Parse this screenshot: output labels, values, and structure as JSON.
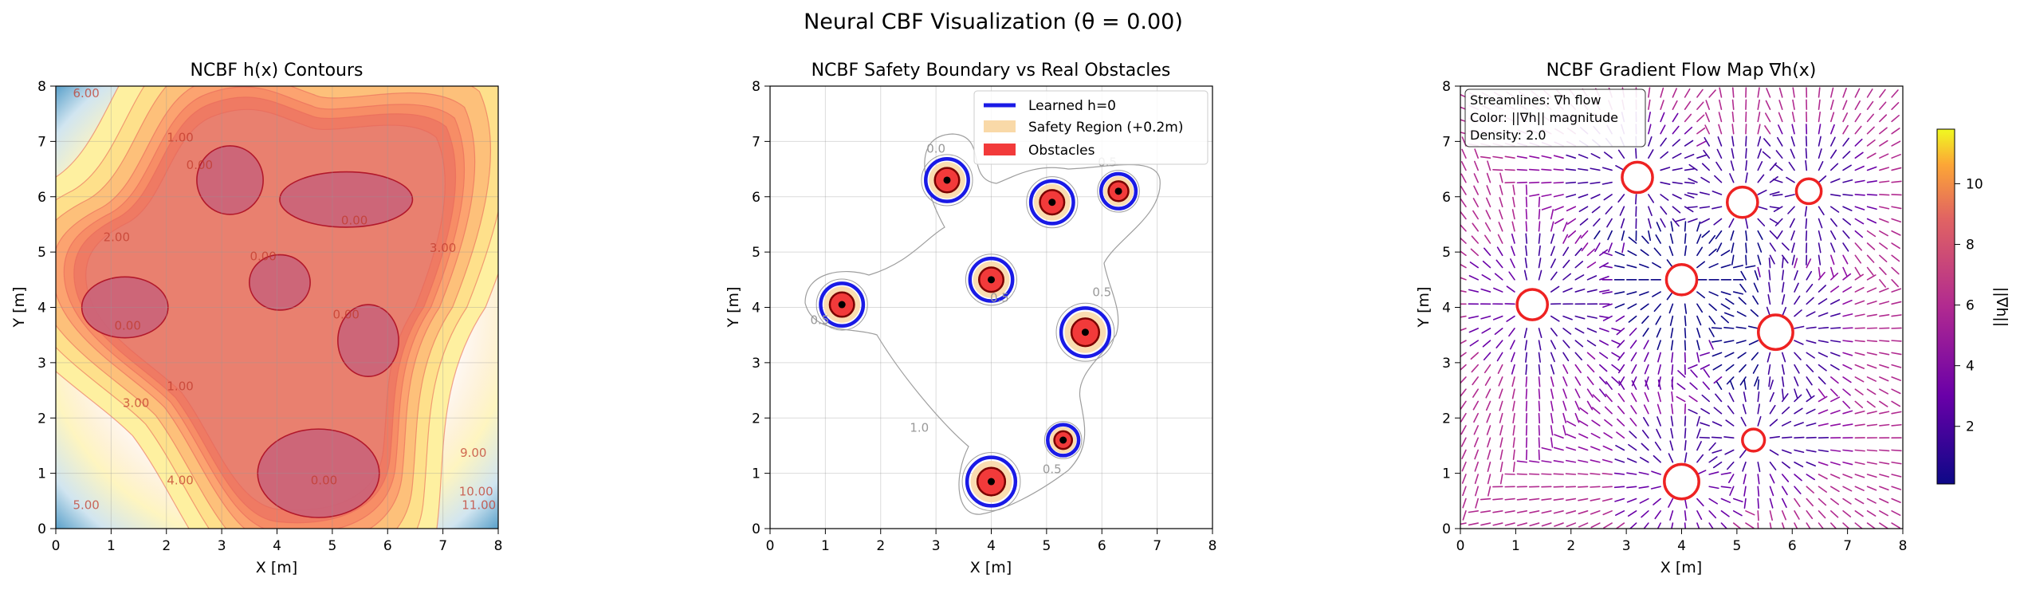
{
  "figure": {
    "suptitle": "Neural CBF Visualization (θ = 0.00)"
  },
  "chart_data": [
    {
      "type": "contour",
      "title": "NCBF h(x) Contours",
      "xlabel": "X [m]",
      "ylabel": "Y [m]",
      "xlim": [
        0,
        8
      ],
      "ylim": [
        0,
        8
      ],
      "xticks": [
        "0",
        "1",
        "2",
        "3",
        "4",
        "5",
        "6",
        "7",
        "8"
      ],
      "yticks": [
        "0",
        "1",
        "2",
        "3",
        "4",
        "5",
        "6",
        "7",
        "8"
      ],
      "grid": true,
      "colormap": "RdYlBu",
      "zero_regions": [
        {
          "cx": 1.25,
          "cy": 4.0,
          "rx": 0.78,
          "ry": 0.55
        },
        {
          "cx": 3.15,
          "cy": 6.3,
          "rx": 0.6,
          "ry": 0.62
        },
        {
          "cx": 5.25,
          "cy": 5.95,
          "rx": 1.2,
          "ry": 0.5
        },
        {
          "cx": 4.05,
          "cy": 4.45,
          "rx": 0.55,
          "ry": 0.5
        },
        {
          "cx": 5.65,
          "cy": 3.4,
          "rx": 0.55,
          "ry": 0.65
        },
        {
          "cx": 4.75,
          "cy": 1.0,
          "rx": 1.1,
          "ry": 0.8
        }
      ],
      "contour_labels": [
        {
          "text": "0.00",
          "x": 1.3,
          "y": 3.6
        },
        {
          "text": "0.00",
          "x": 2.6,
          "y": 6.5
        },
        {
          "text": "0.00",
          "x": 5.4,
          "y": 5.5
        },
        {
          "text": "0.00",
          "x": 3.75,
          "y": 4.85
        },
        {
          "text": "0.00",
          "x": 5.25,
          "y": 3.8
        },
        {
          "text": "0.00",
          "x": 4.85,
          "y": 0.8
        },
        {
          "text": "1.00",
          "x": 2.25,
          "y": 7.0
        },
        {
          "text": "1.00",
          "x": 2.25,
          "y": 2.5
        },
        {
          "text": "2.00",
          "x": 1.1,
          "y": 5.2
        },
        {
          "text": "3.00",
          "x": 1.45,
          "y": 2.2
        },
        {
          "text": "3.00",
          "x": 7.0,
          "y": 5.0
        },
        {
          "text": "4.00",
          "x": 2.25,
          "y": 0.8
        },
        {
          "text": "5.00",
          "x": 0.55,
          "y": 0.35
        },
        {
          "text": "6.00",
          "x": 0.55,
          "y": 7.8
        },
        {
          "text": "9.00",
          "x": 7.55,
          "y": 1.3
        },
        {
          "text": "10.00",
          "x": 7.6,
          "y": 0.6
        },
        {
          "text": "11.00",
          "x": 7.65,
          "y": 0.35
        }
      ]
    },
    {
      "type": "overlay",
      "title": "NCBF Safety Boundary vs Real Obstacles",
      "xlabel": "X [m]",
      "ylabel": "Y [m]",
      "xlim": [
        0,
        8
      ],
      "ylim": [
        0,
        8
      ],
      "xticks": [
        "0",
        "1",
        "2",
        "3",
        "4",
        "5",
        "6",
        "7",
        "8"
      ],
      "yticks": [
        "0",
        "1",
        "2",
        "3",
        "4",
        "5",
        "6",
        "7",
        "8"
      ],
      "grid": true,
      "legend_position": "upper-right",
      "legend": [
        {
          "label": "Learned h=0",
          "type": "line",
          "color": "#1a1ae6"
        },
        {
          "label": "Safety Region (+0.2m)",
          "type": "patch",
          "color": "#f9d9a8"
        },
        {
          "label": "Obstacles",
          "type": "patch",
          "color": "#f23a3a"
        }
      ],
      "obstacles": [
        {
          "x": 1.3,
          "y": 4.05,
          "r": 0.22
        },
        {
          "x": 3.2,
          "y": 6.3,
          "r": 0.22
        },
        {
          "x": 5.1,
          "y": 5.9,
          "r": 0.22
        },
        {
          "x": 6.3,
          "y": 6.1,
          "r": 0.18
        },
        {
          "x": 4.0,
          "y": 4.5,
          "r": 0.22
        },
        {
          "x": 5.7,
          "y": 3.55,
          "r": 0.25
        },
        {
          "x": 5.3,
          "y": 1.6,
          "r": 0.16
        },
        {
          "x": 4.0,
          "y": 0.85,
          "r": 0.25
        }
      ],
      "contour_labels": [
        {
          "text": "1.0",
          "x": 2.7,
          "y": 1.75,
          "color": "#999999"
        },
        {
          "text": "0.5",
          "x": 6.1,
          "y": 6.55,
          "color": "#999999"
        },
        {
          "text": "0.5",
          "x": 6.0,
          "y": 4.2,
          "color": "#999999"
        },
        {
          "text": "0.5",
          "x": 5.1,
          "y": 1.0,
          "color": "#999999"
        },
        {
          "text": "0.5",
          "x": 0.9,
          "y": 3.7,
          "color": "#999999"
        },
        {
          "text": "0.5",
          "x": 4.15,
          "y": 4.1,
          "color": "#999999"
        },
        {
          "text": "0.0",
          "x": 3.0,
          "y": 6.8,
          "color": "#999999"
        }
      ]
    },
    {
      "type": "streamplot",
      "title": "NCBF Gradient Flow Map ∇h(x)",
      "xlabel": "X [m]",
      "ylabel": "Y [m]",
      "xlim": [
        0,
        8
      ],
      "ylim": [
        0,
        8
      ],
      "xticks": [
        "0",
        "1",
        "2",
        "3",
        "4",
        "5",
        "6",
        "7",
        "8"
      ],
      "yticks": [
        "0",
        "1",
        "2",
        "3",
        "4",
        "5",
        "6",
        "7",
        "8"
      ],
      "annotation": [
        "Streamlines: ∇h flow",
        "Color: ||∇h|| magnitude",
        "Density: 2.0"
      ],
      "colorbar": {
        "label": "||∇h||",
        "ticks": [
          "2",
          "4",
          "6",
          "8",
          "10"
        ],
        "min": 0.1,
        "max": 11.8
      },
      "obstacles": [
        {
          "x": 1.3,
          "y": 4.05,
          "r": 0.22
        },
        {
          "x": 3.2,
          "y": 6.35,
          "r": 0.22
        },
        {
          "x": 5.1,
          "y": 5.9,
          "r": 0.22
        },
        {
          "x": 6.3,
          "y": 6.1,
          "r": 0.18
        },
        {
          "x": 4.0,
          "y": 4.5,
          "r": 0.22
        },
        {
          "x": 5.7,
          "y": 3.55,
          "r": 0.25
        },
        {
          "x": 5.3,
          "y": 1.6,
          "r": 0.16
        },
        {
          "x": 4.0,
          "y": 0.85,
          "r": 0.25
        }
      ]
    }
  ]
}
